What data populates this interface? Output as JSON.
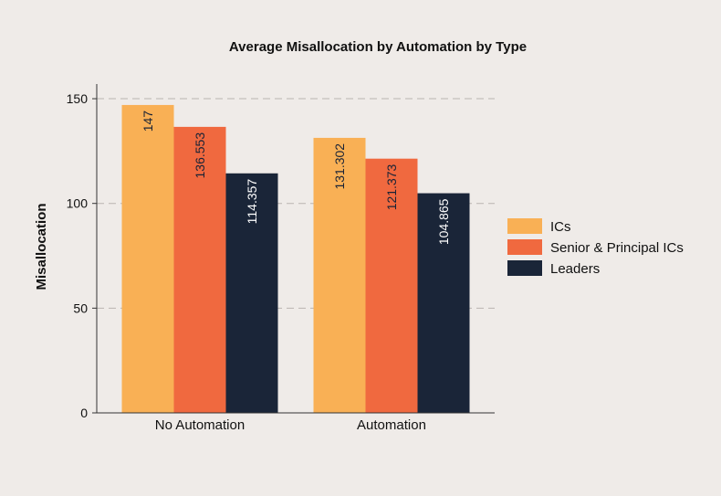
{
  "chart_data": {
    "type": "bar",
    "title": "Average Misallocation by Automation by Type",
    "xlabel": "",
    "ylabel": "Misallocation",
    "ylim": [
      0,
      157
    ],
    "yticks": [
      0,
      50,
      100,
      150
    ],
    "grid": true,
    "legend_position": "right",
    "categories": [
      "No Automation",
      "Automation"
    ],
    "series": [
      {
        "name": "ICs",
        "color": "#f9b055",
        "label_color": "#1a2336",
        "values": [
          147,
          131.302
        ],
        "labels": [
          "147",
          "131.302"
        ]
      },
      {
        "name": "Senior & Principal ICs",
        "color": "#f0693f",
        "label_color": "#1a2336",
        "values": [
          136.553,
          121.373
        ],
        "labels": [
          "136.553",
          "121.373"
        ]
      },
      {
        "name": "Leaders",
        "color": "#1a2538",
        "label_color": "#ffffff",
        "values": [
          114.357,
          104.865
        ],
        "labels": [
          "114.357",
          "104.865"
        ]
      }
    ]
  }
}
